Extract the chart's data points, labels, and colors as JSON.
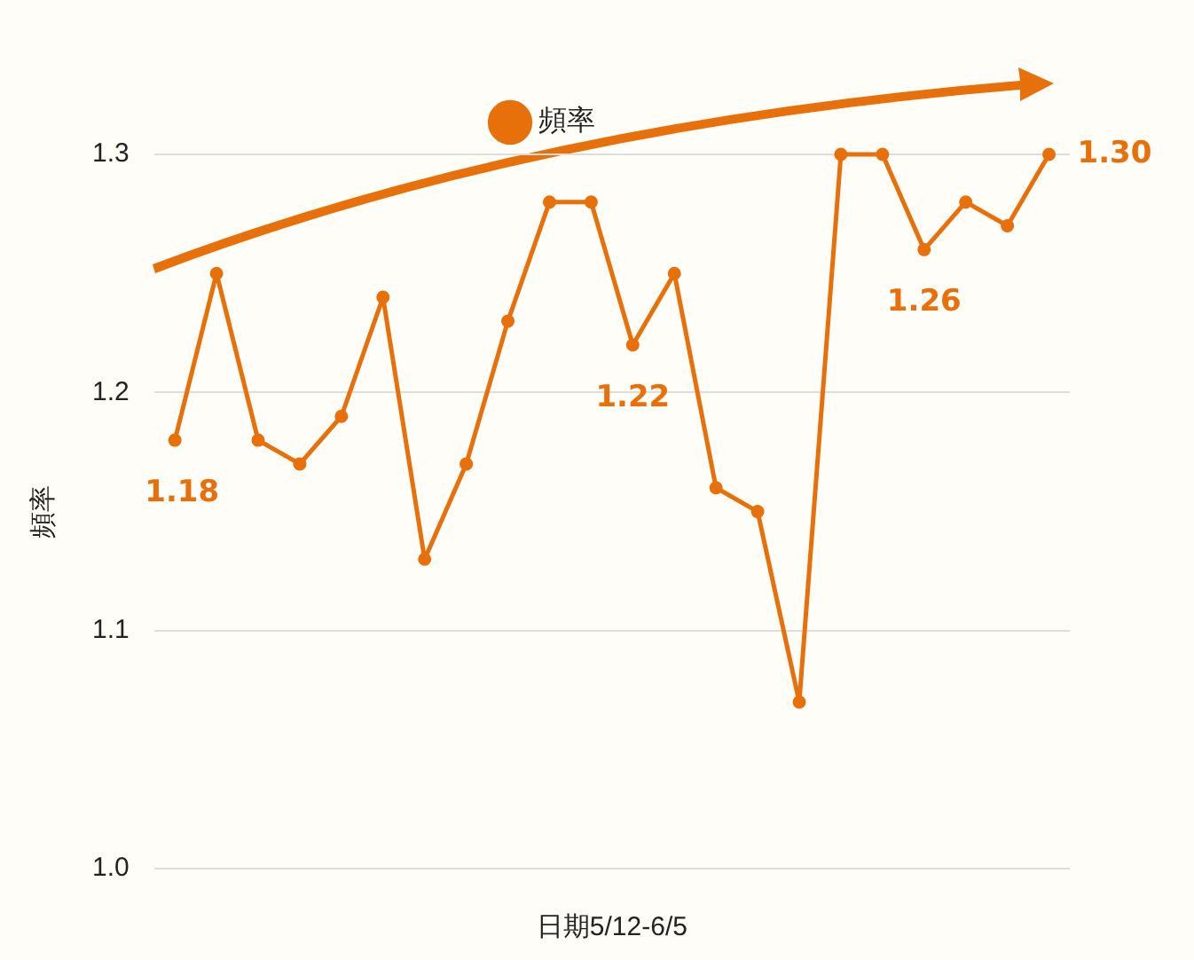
{
  "chart_data": {
    "type": "line",
    "xlabel": "日期5/12-6/5",
    "ylabel": "頻率",
    "categories": [
      null,
      null,
      null,
      null,
      null,
      null,
      null,
      null,
      null,
      null,
      null,
      null,
      null,
      null,
      null,
      null,
      null,
      null,
      null,
      null,
      null,
      null
    ],
    "series": [
      {
        "name": "頻率",
        "color": "#e8700a",
        "values": [
          1.18,
          1.25,
          1.18,
          1.17,
          1.19,
          1.24,
          1.13,
          1.17,
          1.23,
          1.28,
          1.28,
          1.22,
          1.25,
          1.16,
          1.15,
          1.07,
          1.3,
          1.3,
          1.26,
          1.28,
          1.27,
          1.3
        ],
        "value_labels": [
          "1.18",
          null,
          null,
          null,
          null,
          null,
          null,
          null,
          null,
          null,
          null,
          "1.22",
          null,
          null,
          null,
          null,
          null,
          null,
          "1.26",
          null,
          null,
          "1.30"
        ]
      }
    ],
    "ylim": [
      1.0,
      1.3
    ],
    "yticks": [
      {
        "value": 1.0,
        "label": "1.0"
      },
      {
        "value": 1.1,
        "label": "1.1"
      },
      {
        "value": 1.2,
        "label": "1.2"
      },
      {
        "value": 1.3,
        "label": "1.3"
      }
    ],
    "grid": "y",
    "legend": "top",
    "marker": "circle",
    "line_style": "solid"
  }
}
